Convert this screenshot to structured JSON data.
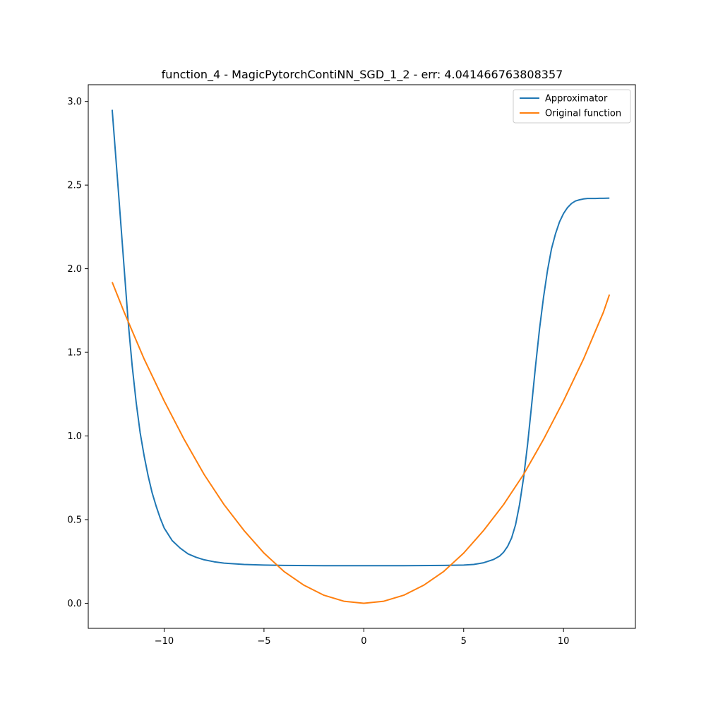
{
  "chart_data": {
    "type": "line",
    "title": "function_4 - MagicPytorchContiNN_SGD_1_2 - err: 4.041466763808357",
    "xlabel": "",
    "ylabel": "",
    "xlim": [
      -13.8,
      13.6
    ],
    "ylim": [
      -0.15,
      3.1
    ],
    "xticks": [
      -10,
      -5,
      0,
      5,
      10
    ],
    "xtick_labels": [
      "−10",
      "−5",
      "0",
      "5",
      "10"
    ],
    "yticks": [
      0.0,
      0.5,
      1.0,
      1.5,
      2.0,
      2.5,
      3.0
    ],
    "ytick_labels": [
      "0.0",
      "0.5",
      "1.0",
      "1.5",
      "2.0",
      "2.5",
      "3.0"
    ],
    "grid": false,
    "legend_position": "top-right",
    "series": [
      {
        "name": "Approximator",
        "color": "#1f77b4",
        "x": [
          -12.6,
          -12.3,
          -12.0,
          -11.8,
          -11.6,
          -11.4,
          -11.2,
          -11.0,
          -10.8,
          -10.6,
          -10.4,
          -10.2,
          -10.0,
          -9.6,
          -9.2,
          -8.8,
          -8.4,
          -8.0,
          -7.5,
          -7.0,
          -6.0,
          -5.0,
          -4.0,
          -2.0,
          0.0,
          2.0,
          4.0,
          5.0,
          5.5,
          6.0,
          6.5,
          6.8,
          7.0,
          7.2,
          7.4,
          7.6,
          7.8,
          8.0,
          8.2,
          8.4,
          8.6,
          8.8,
          9.0,
          9.2,
          9.4,
          9.6,
          9.8,
          10.0,
          10.2,
          10.4,
          10.6,
          10.8,
          11.0,
          11.2,
          11.4,
          11.6,
          11.8,
          12.0,
          12.3
        ],
        "y": [
          2.95,
          2.48,
          2.0,
          1.68,
          1.42,
          1.2,
          1.02,
          0.88,
          0.76,
          0.66,
          0.58,
          0.51,
          0.45,
          0.375,
          0.33,
          0.295,
          0.275,
          0.26,
          0.248,
          0.24,
          0.232,
          0.228,
          0.226,
          0.225,
          0.225,
          0.225,
          0.226,
          0.228,
          0.232,
          0.242,
          0.262,
          0.282,
          0.305,
          0.34,
          0.39,
          0.47,
          0.59,
          0.75,
          0.95,
          1.18,
          1.42,
          1.64,
          1.83,
          1.99,
          2.12,
          2.21,
          2.28,
          2.33,
          2.365,
          2.39,
          2.405,
          2.412,
          2.417,
          2.42,
          2.42,
          2.42,
          2.421,
          2.421,
          2.422
        ]
      },
      {
        "name": "Original function",
        "color": "#ff7f0e",
        "x": [
          -12.6,
          -12.0,
          -11.0,
          -10.0,
          -9.0,
          -8.0,
          -7.0,
          -6.0,
          -5.0,
          -4.0,
          -3.0,
          -2.0,
          -1.0,
          0.0,
          1.0,
          2.0,
          3.0,
          4.0,
          5.0,
          6.0,
          7.0,
          8.0,
          9.0,
          10.0,
          11.0,
          12.0,
          12.3
        ],
        "y": [
          1.92,
          1.74,
          1.46,
          1.21,
          0.98,
          0.77,
          0.59,
          0.435,
          0.3,
          0.19,
          0.108,
          0.048,
          0.012,
          0.0,
          0.012,
          0.048,
          0.108,
          0.19,
          0.3,
          0.435,
          0.59,
          0.77,
          0.98,
          1.21,
          1.46,
          1.74,
          1.845
        ]
      }
    ]
  }
}
